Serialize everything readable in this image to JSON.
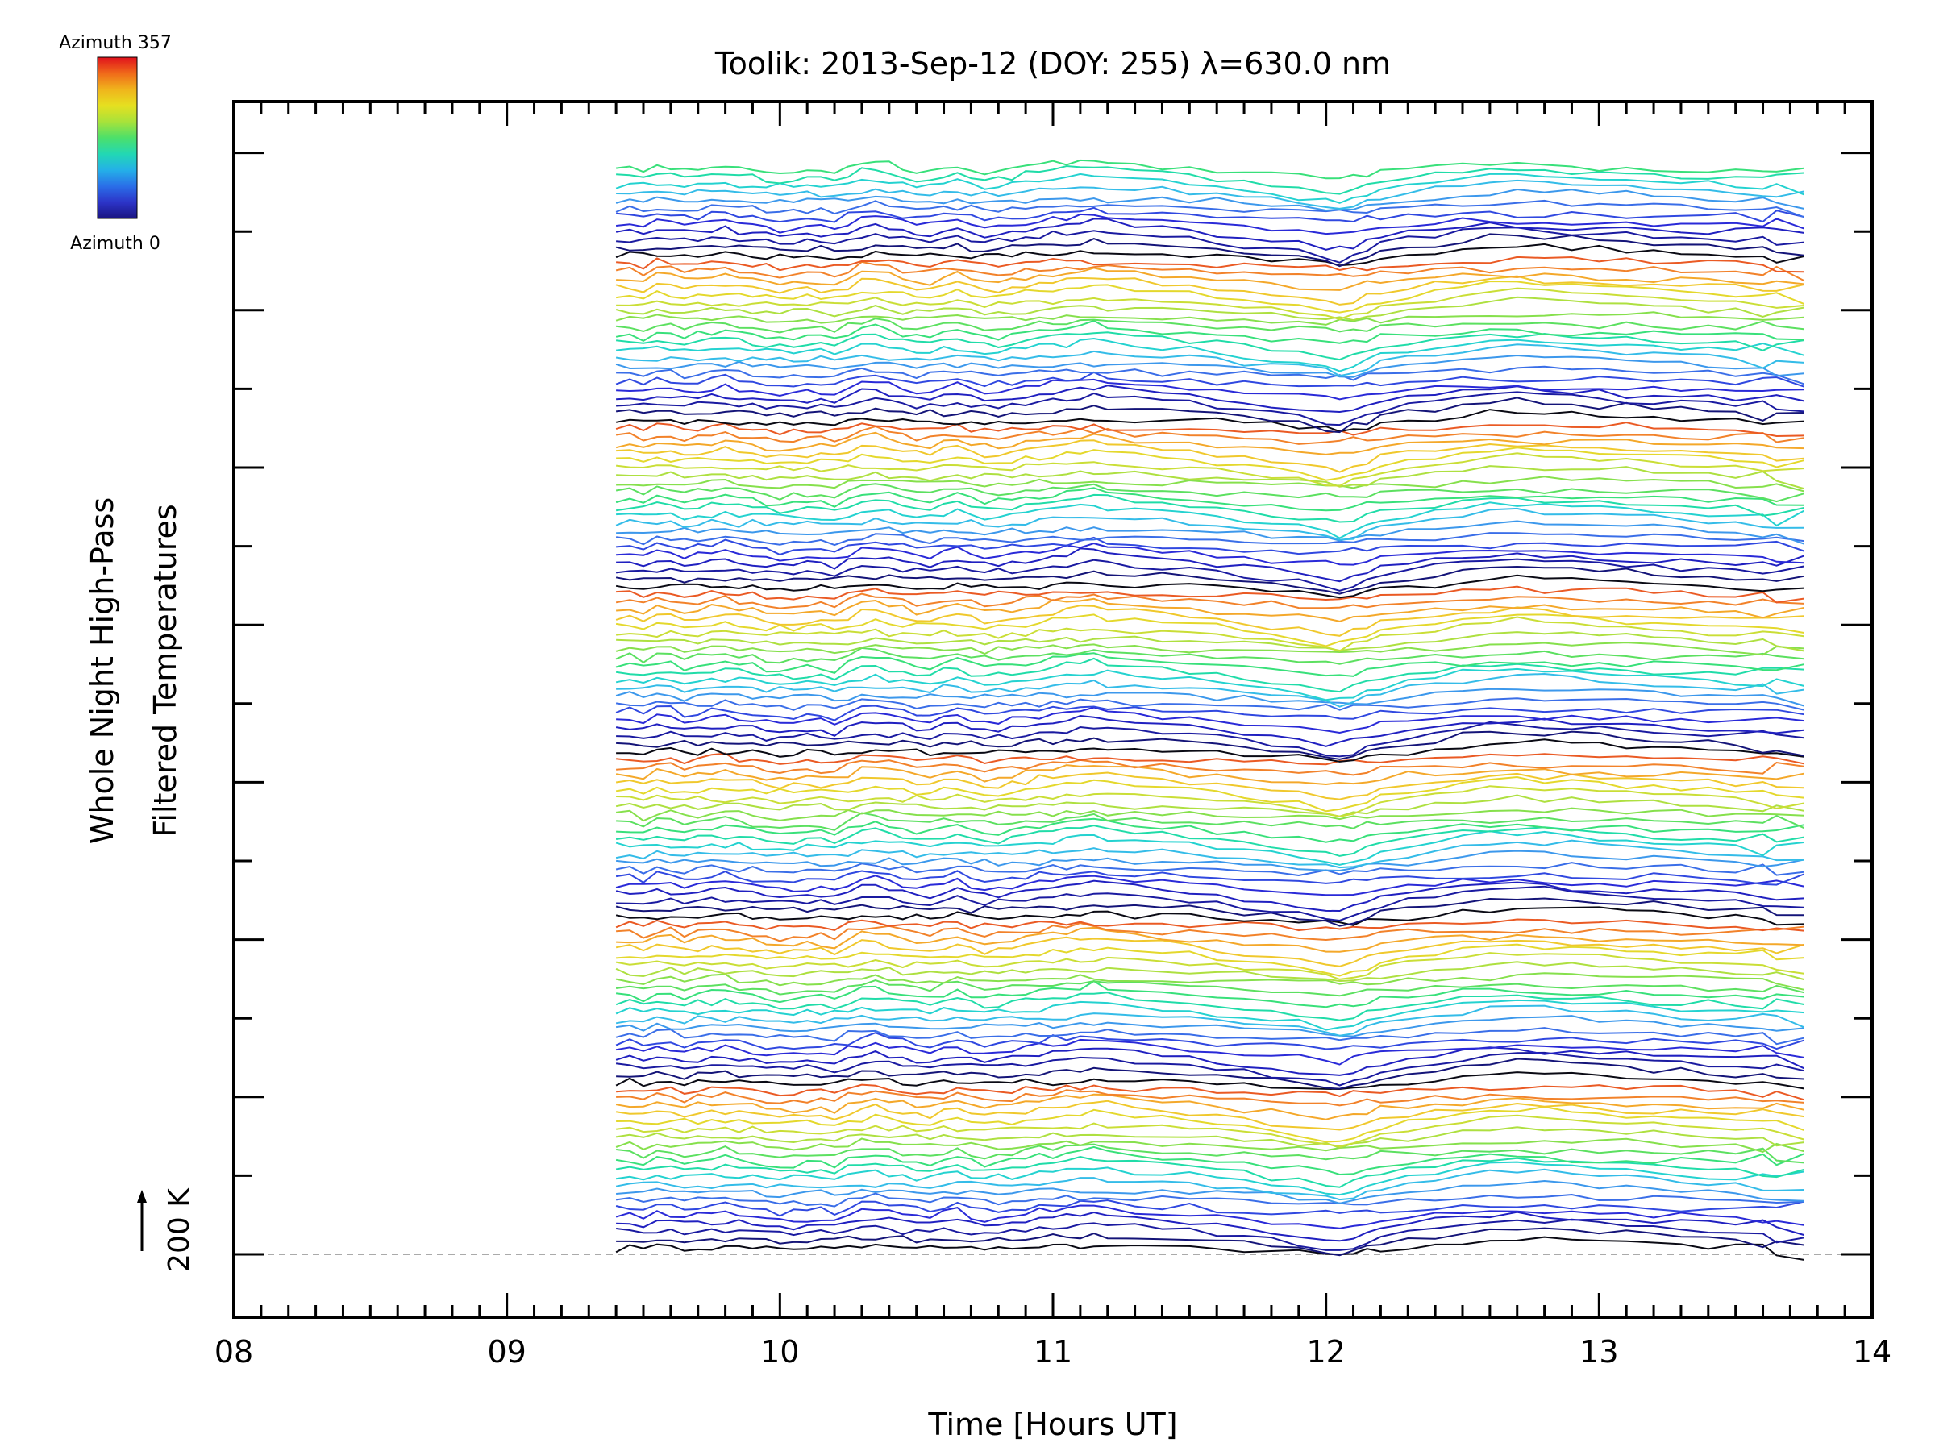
{
  "title": "Toolik: 2013-Sep-12 (DOY: 255) λ=630.0 nm",
  "chart_data": {
    "type": "line",
    "title": "Toolik: 2013-Sep-12 (DOY: 255) λ=630.0 nm",
    "xlabel": "Time [Hours UT]",
    "ylabel_line1": "Whole Night High-Pass",
    "ylabel_line2": "Filtered Temperatures",
    "xlim": [
      8,
      14
    ],
    "x_tick_labels": [
      "08",
      "09",
      "10",
      "11",
      "12",
      "13",
      "14"
    ],
    "x_start": 9.4,
    "x_end": 13.75,
    "scale_label": "200 K",
    "colorbar": {
      "top_label": "Azimuth 357",
      "bottom_label": "Azimuth 0",
      "colors": [
        "#e0101c",
        "#f06a1a",
        "#f0b41c",
        "#e6e020",
        "#a8e23a",
        "#4ce06a",
        "#22d8b4",
        "#24b0e8",
        "#2a6ee8",
        "#2c34c8",
        "#1a1480"
      ]
    },
    "series_count": 138,
    "color_cycle": [
      "#0a0a14",
      "#141478",
      "#1a1aa0",
      "#2020c0",
      "#2a2ad8",
      "#3048e0",
      "#3a6ee8",
      "#3c98ec",
      "#34bce8",
      "#24d2d0",
      "#20dca8",
      "#38e07a",
      "#5ce060",
      "#86e04c",
      "#aee040",
      "#cade36",
      "#e4d82c",
      "#f0c82c",
      "#f4a82a",
      "#f2822a",
      "#ea5a24"
    ],
    "time_samples": [
      9.4,
      9.45,
      9.5,
      9.55,
      9.6,
      9.65,
      9.7,
      9.75,
      9.8,
      9.85,
      9.9,
      9.95,
      10.0,
      10.05,
      10.1,
      10.15,
      10.2,
      10.25,
      10.3,
      10.35,
      10.4,
      10.45,
      10.5,
      10.55,
      10.6,
      10.65,
      10.7,
      10.75,
      10.8,
      10.85,
      10.9,
      10.95,
      11.0,
      11.05,
      11.1,
      11.15,
      11.2,
      11.3,
      11.4,
      11.5,
      11.6,
      11.7,
      11.8,
      11.9,
      12.0,
      12.05,
      12.1,
      12.15,
      12.2,
      12.3,
      12.4,
      12.5,
      12.6,
      12.7,
      12.8,
      12.9,
      13.0,
      13.1,
      13.2,
      13.3,
      13.4,
      13.5,
      13.6,
      13.65,
      13.75
    ],
    "mean_anomaly_K": [
      0,
      2,
      -3,
      4,
      3,
      -2,
      1,
      3,
      5,
      2,
      0,
      -4,
      -6,
      -5,
      -3,
      -2,
      -6,
      2,
      8,
      10,
      6,
      2,
      -1,
      -2,
      3,
      6,
      1,
      -3,
      -2,
      0,
      3,
      6,
      8,
      10,
      12,
      14,
      12,
      8,
      5,
      2,
      -2,
      -6,
      -10,
      -14,
      -20,
      -22,
      -18,
      -12,
      -6,
      0,
      4,
      10,
      14,
      16,
      14,
      12,
      10,
      8,
      6,
      4,
      2,
      0,
      -2,
      -4,
      -6
    ]
  }
}
